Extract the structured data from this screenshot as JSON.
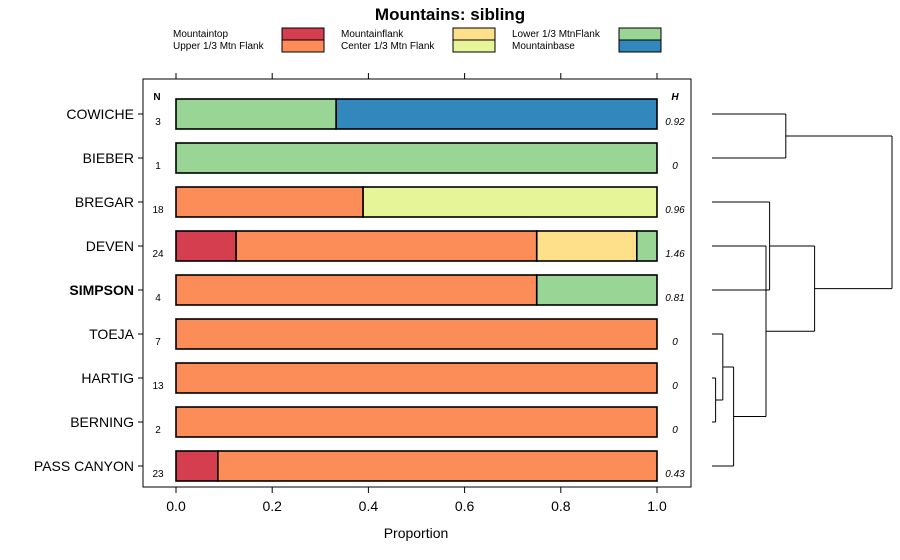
{
  "chart_data": {
    "type": "bar",
    "orientation": "horizontal",
    "stacked": true,
    "title": "Mountains: sibling",
    "xlabel": "Proportion",
    "ylabel": "",
    "xlim": [
      0,
      1
    ],
    "x_ticks": [
      "0.0",
      "0.2",
      "0.4",
      "0.6",
      "0.8",
      "1.0"
    ],
    "x_tick_values": [
      0,
      0.2,
      0.4,
      0.6,
      0.8,
      1.0
    ],
    "n_header": "N",
    "h_header": "H",
    "legend": [
      {
        "name": "Mountaintop",
        "color": "#d53e4f"
      },
      {
        "name": "Upper 1/3 Mtn Flank",
        "color": "#fc8d59"
      },
      {
        "name": "Mountainflank",
        "color": "#fee08b"
      },
      {
        "name": "Center 1/3 Mtn Flank",
        "color": "#e6f598"
      },
      {
        "name": "Lower 1/3 MtnFlank",
        "color": "#99d594"
      },
      {
        "name": "Mountainbase",
        "color": "#3288bd"
      }
    ],
    "categories": [
      "COWICHE",
      "BIEBER",
      "BREGAR",
      "DEVEN",
      "SIMPSON",
      "TOEJA",
      "HARTIG",
      "BERNING",
      "PASS CANYON"
    ],
    "highlight": "SIMPSON",
    "n": [
      "3",
      "1",
      "18",
      "24",
      "4",
      "7",
      "13",
      "2",
      "23"
    ],
    "h": [
      "0.92",
      "0",
      "0.96",
      "1.46",
      "0.81",
      "0",
      "0",
      "0",
      "0.43"
    ],
    "series": [
      {
        "name": "Mountaintop",
        "values": [
          0,
          0,
          0,
          0.125,
          0,
          0,
          0,
          0,
          0.087
        ]
      },
      {
        "name": "Upper 1/3 Mtn Flank",
        "values": [
          0,
          0,
          0.389,
          0.625,
          0.75,
          1,
          1,
          1,
          0.913
        ]
      },
      {
        "name": "Mountainflank",
        "values": [
          0,
          0,
          0,
          0.208,
          0,
          0,
          0,
          0,
          0
        ]
      },
      {
        "name": "Center 1/3 Mtn Flank",
        "values": [
          0,
          0,
          0.611,
          0,
          0,
          0,
          0,
          0,
          0
        ]
      },
      {
        "name": "Lower 1/3 MtnFlank",
        "values": [
          0.333,
          1,
          0,
          0.042,
          0.25,
          0,
          0,
          0,
          0
        ]
      },
      {
        "name": "Mountainbase",
        "values": [
          0.667,
          0,
          0,
          0,
          0,
          0,
          0,
          0,
          0
        ]
      }
    ],
    "dendrogram": {
      "merges": [
        [
          6,
          7,
          0.02
        ],
        [
          5,
          9,
          0.06
        ],
        [
          8,
          10,
          0.12
        ],
        [
          3,
          11,
          0.3
        ],
        [
          2,
          4,
          0.32
        ],
        [
          12,
          13,
          0.57
        ],
        [
          0,
          1,
          0.41
        ],
        [
          14,
          15,
          1.0
        ]
      ]
    }
  }
}
